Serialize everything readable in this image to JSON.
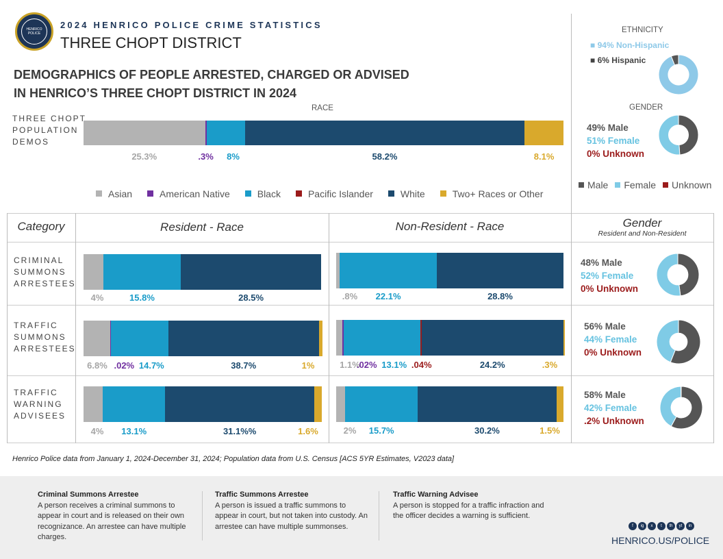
{
  "header": {
    "seal_text": "HENRICO POLICE",
    "topline": "2024 HENRICO POLICE CRIME STATISTICS",
    "district": "THREE CHOPT DISTRICT",
    "headline_1": "DEMOGRAPHICS OF PEOPLE ARRESTED, CHARGED OR ADVISED",
    "headline_2": "IN HENRICO’S THREE CHOPT DISTRICT IN 2024"
  },
  "colors": {
    "asian": "#b3b3b3",
    "american_native": "#7030a0",
    "black": "#1a9cc9",
    "pacific_islander": "#9b1b1b",
    "white": "#1c4a6e",
    "two_plus": "#d9a92c",
    "male": "#555555",
    "female": "#7fcbe6",
    "unknown": "#9b1b1b"
  },
  "chart_data": [
    {
      "type": "bar",
      "id": "population",
      "title": "RACE",
      "row_label": "THREE CHOPT POPULATION DEMOS",
      "categories": [
        "Asian",
        "American Native",
        "Black",
        "Pacific Islander",
        "White",
        "Two+ Races or Other"
      ],
      "values": [
        25.3,
        0.3,
        8,
        0,
        58.2,
        8.1
      ],
      "labels": [
        "25.3%",
        ".3%",
        "8%",
        "",
        "58.2%",
        "8.1%"
      ]
    },
    {
      "type": "bar",
      "id": "criminal_resident",
      "categories": [
        "Asian",
        "Black",
        "White"
      ],
      "values": [
        4,
        15.8,
        28.5
      ],
      "labels": [
        "4%",
        "15.8%",
        "28.5%"
      ]
    },
    {
      "type": "bar",
      "id": "criminal_nonresident",
      "categories": [
        "Asian",
        "Black",
        "White"
      ],
      "values": [
        0.8,
        22.1,
        28.8
      ],
      "labels": [
        ".8%",
        "22.1%",
        "28.8%"
      ]
    },
    {
      "type": "bar",
      "id": "traffic_resident",
      "categories": [
        "Asian",
        "American Native",
        "Black",
        "White",
        "Two+ Races or Other"
      ],
      "values": [
        6.8,
        0.02,
        14.7,
        38.7,
        1
      ],
      "labels": [
        "6.8%",
        ".02%",
        "14.7%",
        "38.7%",
        "1%"
      ]
    },
    {
      "type": "bar",
      "id": "traffic_nonresident",
      "categories": [
        "Asian",
        "American Native",
        "Black",
        "Pacific Islander",
        "White",
        "Two+ Races or Other"
      ],
      "values": [
        1.1,
        0.02,
        13.1,
        0.04,
        24.2,
        0.3
      ],
      "labels": [
        "1.1%",
        ".02%",
        "13.1%",
        ".04%",
        "24.2%",
        ".3%"
      ]
    },
    {
      "type": "bar",
      "id": "warning_resident",
      "categories": [
        "Asian",
        "Black",
        "White",
        "Two+ Races or Other"
      ],
      "values": [
        4,
        13.1,
        31.1,
        1.6
      ],
      "labels": [
        "4%",
        "13.1%",
        "31.1%%",
        "1.6%"
      ]
    },
    {
      "type": "bar",
      "id": "warning_nonresident",
      "categories": [
        "Asian",
        "Black",
        "White",
        "Two+ Races or Other"
      ],
      "values": [
        2,
        15.7,
        30.2,
        1.5
      ],
      "labels": [
        "2%",
        "15.7%",
        "30.2%",
        "1.5%"
      ]
    },
    {
      "type": "pie",
      "id": "ethnicity",
      "title": "ETHNICITY",
      "categories": [
        "Non-Hispanic",
        "Hispanic"
      ],
      "values": [
        94,
        6
      ],
      "labels": [
        "94% Non-Hispanic",
        "6% Hispanic"
      ]
    },
    {
      "type": "pie",
      "id": "gender_pop",
      "title": "GENDER",
      "categories": [
        "Male",
        "Female",
        "Unknown"
      ],
      "values": [
        49,
        51,
        0
      ],
      "labels": [
        "49% Male",
        "51% Female",
        "0% Unknown"
      ]
    },
    {
      "type": "pie",
      "id": "gender_criminal",
      "categories": [
        "Male",
        "Female",
        "Unknown"
      ],
      "values": [
        48,
        52,
        0
      ],
      "labels": [
        "48% Male",
        "52% Female",
        "0% Unknown"
      ]
    },
    {
      "type": "pie",
      "id": "gender_traffic",
      "categories": [
        "Male",
        "Female",
        "Unknown"
      ],
      "values": [
        56,
        44,
        0
      ],
      "labels": [
        "56% Male",
        "44% Female",
        "0% Unknown"
      ]
    },
    {
      "type": "pie",
      "id": "gender_warning",
      "categories": [
        "Male",
        "Female",
        "Unknown"
      ],
      "values": [
        58,
        42,
        0.2
      ],
      "labels": [
        "58% Male",
        "42% Female",
        ".2% Unknown"
      ]
    }
  ],
  "legend": {
    "race": [
      "Asian",
      "American Native",
      "Black",
      "Pacific Islander",
      "White",
      "Two+ Races or Other"
    ],
    "gender": [
      "Male",
      "Female",
      "Unknown"
    ]
  },
  "table": {
    "col_category": "Category",
    "col_resident": "Resident - Race",
    "col_nonresident": "Non-Resident - Race",
    "col_gender": "Gender",
    "col_gender_sub": "Resident and Non-Resident",
    "rows": [
      "CRIMINAL SUMMONS ARRESTEES",
      "TRAFFIC SUMMONS ARRESTEES",
      "TRAFFIC WARNING ADVISEES"
    ]
  },
  "source": "Henrico Police data from January 1, 2024-December 31, 2024; Population data from U.S. Census [ACS 5YR Estimates, V2023 data]",
  "footer": {
    "col1_title": "Criminal Summons Arrestee",
    "col1_text": "A person receives a criminal summons to appear in court and is released on their own recognizance. An arrestee can have multiple charges.",
    "col2_title": "Traffic Summons Arrestee",
    "col2_text": "A person is issued a traffic summons to appear in court, but not taken into custody. An arrestee can have multiple summonses.",
    "col3_title": "Traffic Warning Advisee",
    "col3_text": "A person is stopped for a traffic infraction and the officer decides a warning is sufficient.",
    "social": [
      "f",
      "ig",
      "x",
      "t",
      "th",
      "yt",
      "in"
    ],
    "website": "HENRICO.US/POLICE"
  }
}
